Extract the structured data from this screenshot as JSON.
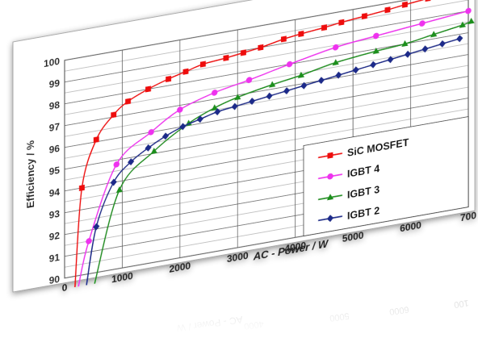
{
  "chart_data": {
    "type": "line",
    "xlabel": "AC - Power / W",
    "ylabel": "Efficiency / %",
    "xlim": [
      0,
      7000
    ],
    "ylim": [
      90,
      100
    ],
    "x_ticks": [
      "0",
      "1000",
      "2000",
      "3000",
      "4000",
      "5000",
      "6000",
      "700"
    ],
    "y_ticks": [
      "90",
      "91",
      "92",
      "93",
      "94",
      "95",
      "96",
      "97",
      "98",
      "99",
      "100"
    ],
    "grid": true,
    "legend_position": "bottom-right",
    "series": [
      {
        "name": "SiC MOSFET",
        "color": "#ee1111",
        "marker": "square",
        "curve_start": [
          180,
          89.5
        ],
        "x": [
          300,
          550,
          850,
          1100,
          1450,
          1800,
          2100,
          2400,
          2800,
          3100,
          3400,
          3800,
          4100,
          4500,
          4800,
          5200,
          5600,
          5900,
          6300,
          6650,
          6950
        ],
        "y": [
          94.0,
          96.1,
          97.1,
          97.6,
          98.0,
          98.3,
          98.5,
          98.7,
          98.8,
          98.9,
          99.0,
          99.2,
          99.3,
          99.4,
          99.5,
          99.6,
          99.7,
          99.8,
          99.9,
          100.0,
          100.1
        ]
      },
      {
        "name": "IGBT 4",
        "color": "#ee33ee",
        "marker": "circle",
        "curve_start": [
          240,
          89.5
        ],
        "x": [
          420,
          900,
          1500,
          2000,
          2600,
          3200,
          3900,
          4700,
          5400,
          6200,
          7000
        ],
        "y": [
          91.5,
          94.8,
          96.0,
          96.8,
          97.3,
          97.6,
          98.0,
          98.4,
          98.6,
          98.8,
          99.0
        ]
      },
      {
        "name": "IGBT 3",
        "color": "#1f8f1f",
        "marker": "triangle",
        "curve_start": [
          520,
          89.5
        ],
        "x": [
          950,
          1550,
          2150,
          2600,
          3000,
          3600,
          4100,
          4700,
          5400,
          5900,
          6400,
          6900,
          7050
        ],
        "y": [
          93.6,
          95.1,
          96.1,
          96.6,
          96.9,
          97.2,
          97.4,
          97.7,
          97.9,
          98.0,
          98.2,
          98.4,
          98.5
        ]
      },
      {
        "name": "IGBT 2",
        "color": "#1a2a8a",
        "marker": "diamond",
        "curve_start": [
          380,
          89.5
        ],
        "x": [
          550,
          850,
          1150,
          1450,
          1750,
          2050,
          2350,
          2650,
          2950,
          3250,
          3550,
          3850,
          4150,
          4450,
          4750,
          5050,
          5350,
          5650,
          5950,
          6250,
          6550,
          6850
        ],
        "y": [
          92.1,
          94.0,
          94.8,
          95.3,
          95.7,
          96.0,
          96.2,
          96.4,
          96.5,
          96.6,
          96.7,
          96.8,
          96.9,
          97.0,
          97.1,
          97.2,
          97.3,
          97.4,
          97.5,
          97.6,
          97.7,
          97.8
        ]
      }
    ]
  }
}
